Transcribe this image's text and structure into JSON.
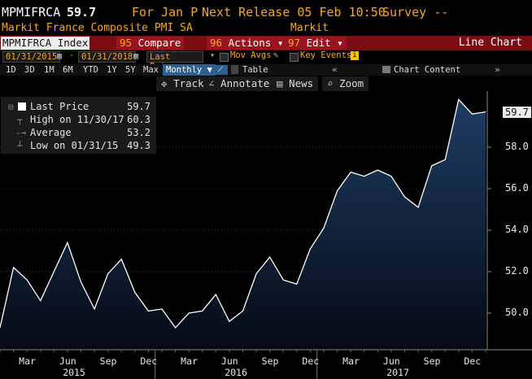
{
  "header": {
    "ticker": "MPMIFRCA",
    "last_value": "59.7",
    "for_period": "For Jan P",
    "next_release": "Next Release 05 Feb 10:50",
    "survey": "Survey --",
    "description": "Markit France Composite PMI SA",
    "source": "Markit"
  },
  "toolbar": {
    "security": "MPMIFRCA Index",
    "compare_num": "95",
    "compare_label": "Compare",
    "actions_num": "96",
    "actions_label": "Actions",
    "edit_num": "97",
    "edit_label": "Edit",
    "chart_type": "Line Chart"
  },
  "controls": {
    "start_date": "01/31/2015",
    "end_date": "01/31/2018",
    "field": "Last Price",
    "mov_avgs": "Mov Avgs",
    "key_events": "Key Events",
    "periods": [
      "1D",
      "3D",
      "1M",
      "6M",
      "YTD",
      "5Y",
      "5Y",
      "Max"
    ],
    "frequency": "Monthly",
    "table_label": "Table",
    "chart_content": "Chart Content"
  },
  "tools": {
    "track": "Track",
    "annotate": "Annotate",
    "news": "News",
    "zoom": "Zoom"
  },
  "legend": {
    "last_price_label": "Last Price",
    "last_price_value": "59.7",
    "high_label": "High on 11/30/17",
    "high_value": "60.3",
    "average_label": "Average",
    "average_value": "53.2",
    "low_label": "Low on 01/31/15",
    "low_value": "49.3"
  },
  "colors": {
    "line": "#ffffff",
    "fill_top": "#1d3d63",
    "fill_bottom": "#050a14",
    "accent_amber": "#f5a623",
    "title_bar": "#7a0d14"
  },
  "chart_data": {
    "type": "area",
    "title": "",
    "xlabel": "",
    "ylabel": "",
    "ylim": [
      48.0,
      61.0
    ],
    "y_ticks": [
      "50.0",
      "52.0",
      "54.0",
      "56.0",
      "58.0"
    ],
    "last_value_label": "59.7",
    "x_tick_labels": [
      "Mar",
      "Jun",
      "Sep",
      "Dec",
      "Mar",
      "Jun",
      "Sep",
      "Dec",
      "Mar",
      "Jun",
      "Sep",
      "Dec"
    ],
    "year_labels": [
      "2015",
      "2016",
      "2017"
    ],
    "x": [
      "2015-01",
      "2015-02",
      "2015-03",
      "2015-04",
      "2015-05",
      "2015-06",
      "2015-07",
      "2015-08",
      "2015-09",
      "2015-10",
      "2015-11",
      "2015-12",
      "2016-01",
      "2016-02",
      "2016-03",
      "2016-04",
      "2016-05",
      "2016-06",
      "2016-07",
      "2016-08",
      "2016-09",
      "2016-10",
      "2016-11",
      "2016-12",
      "2017-01",
      "2017-02",
      "2017-03",
      "2017-04",
      "2017-05",
      "2017-06",
      "2017-07",
      "2017-08",
      "2017-09",
      "2017-10",
      "2017-11",
      "2017-12",
      "2018-01"
    ],
    "values": [
      49.3,
      52.2,
      51.6,
      50.6,
      52.0,
      53.4,
      51.5,
      50.2,
      51.9,
      52.6,
      51.0,
      50.1,
      50.2,
      49.3,
      50.0,
      50.1,
      50.9,
      49.6,
      50.1,
      51.9,
      52.7,
      51.6,
      51.4,
      53.1,
      54.1,
      55.9,
      56.8,
      56.6,
      56.9,
      56.6,
      55.6,
      55.1,
      57.1,
      57.4,
      60.3,
      59.6,
      59.7
    ],
    "grid": true,
    "legend_position": "top-left"
  }
}
